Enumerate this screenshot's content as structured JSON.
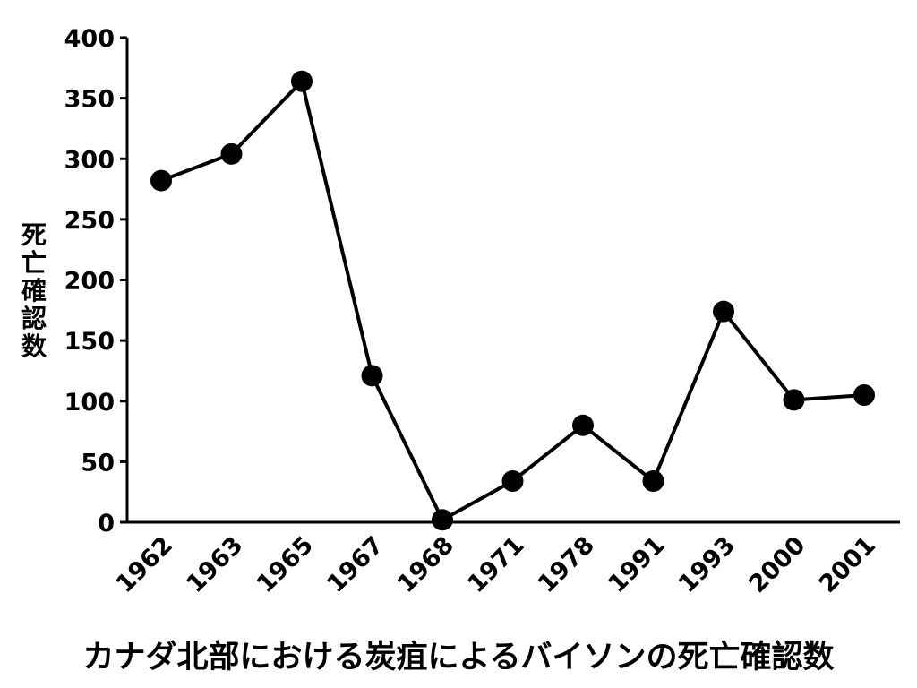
{
  "chart_data": {
    "type": "line",
    "title": "カナダ北部における炭疽によるバイソンの死亡確認数",
    "xlabel": "",
    "ylabel": "死亡確認数",
    "categories": [
      "1962",
      "1963",
      "1965",
      "1967",
      "1968",
      "1971",
      "1978",
      "1991",
      "1993",
      "2000",
      "2001"
    ],
    "series": [
      {
        "values": [
          282,
          304,
          364,
          121,
          2,
          34,
          80,
          34,
          174,
          101,
          105
        ]
      }
    ],
    "ylim": [
      0,
      400
    ],
    "yticks": [
      "0",
      "50",
      "100",
      "150",
      "200",
      "250",
      "300",
      "350",
      "400"
    ],
    "grid": false,
    "legend": "none",
    "colors": {
      "line": "#000000",
      "marker": "#000000",
      "axis": "#000000"
    }
  }
}
